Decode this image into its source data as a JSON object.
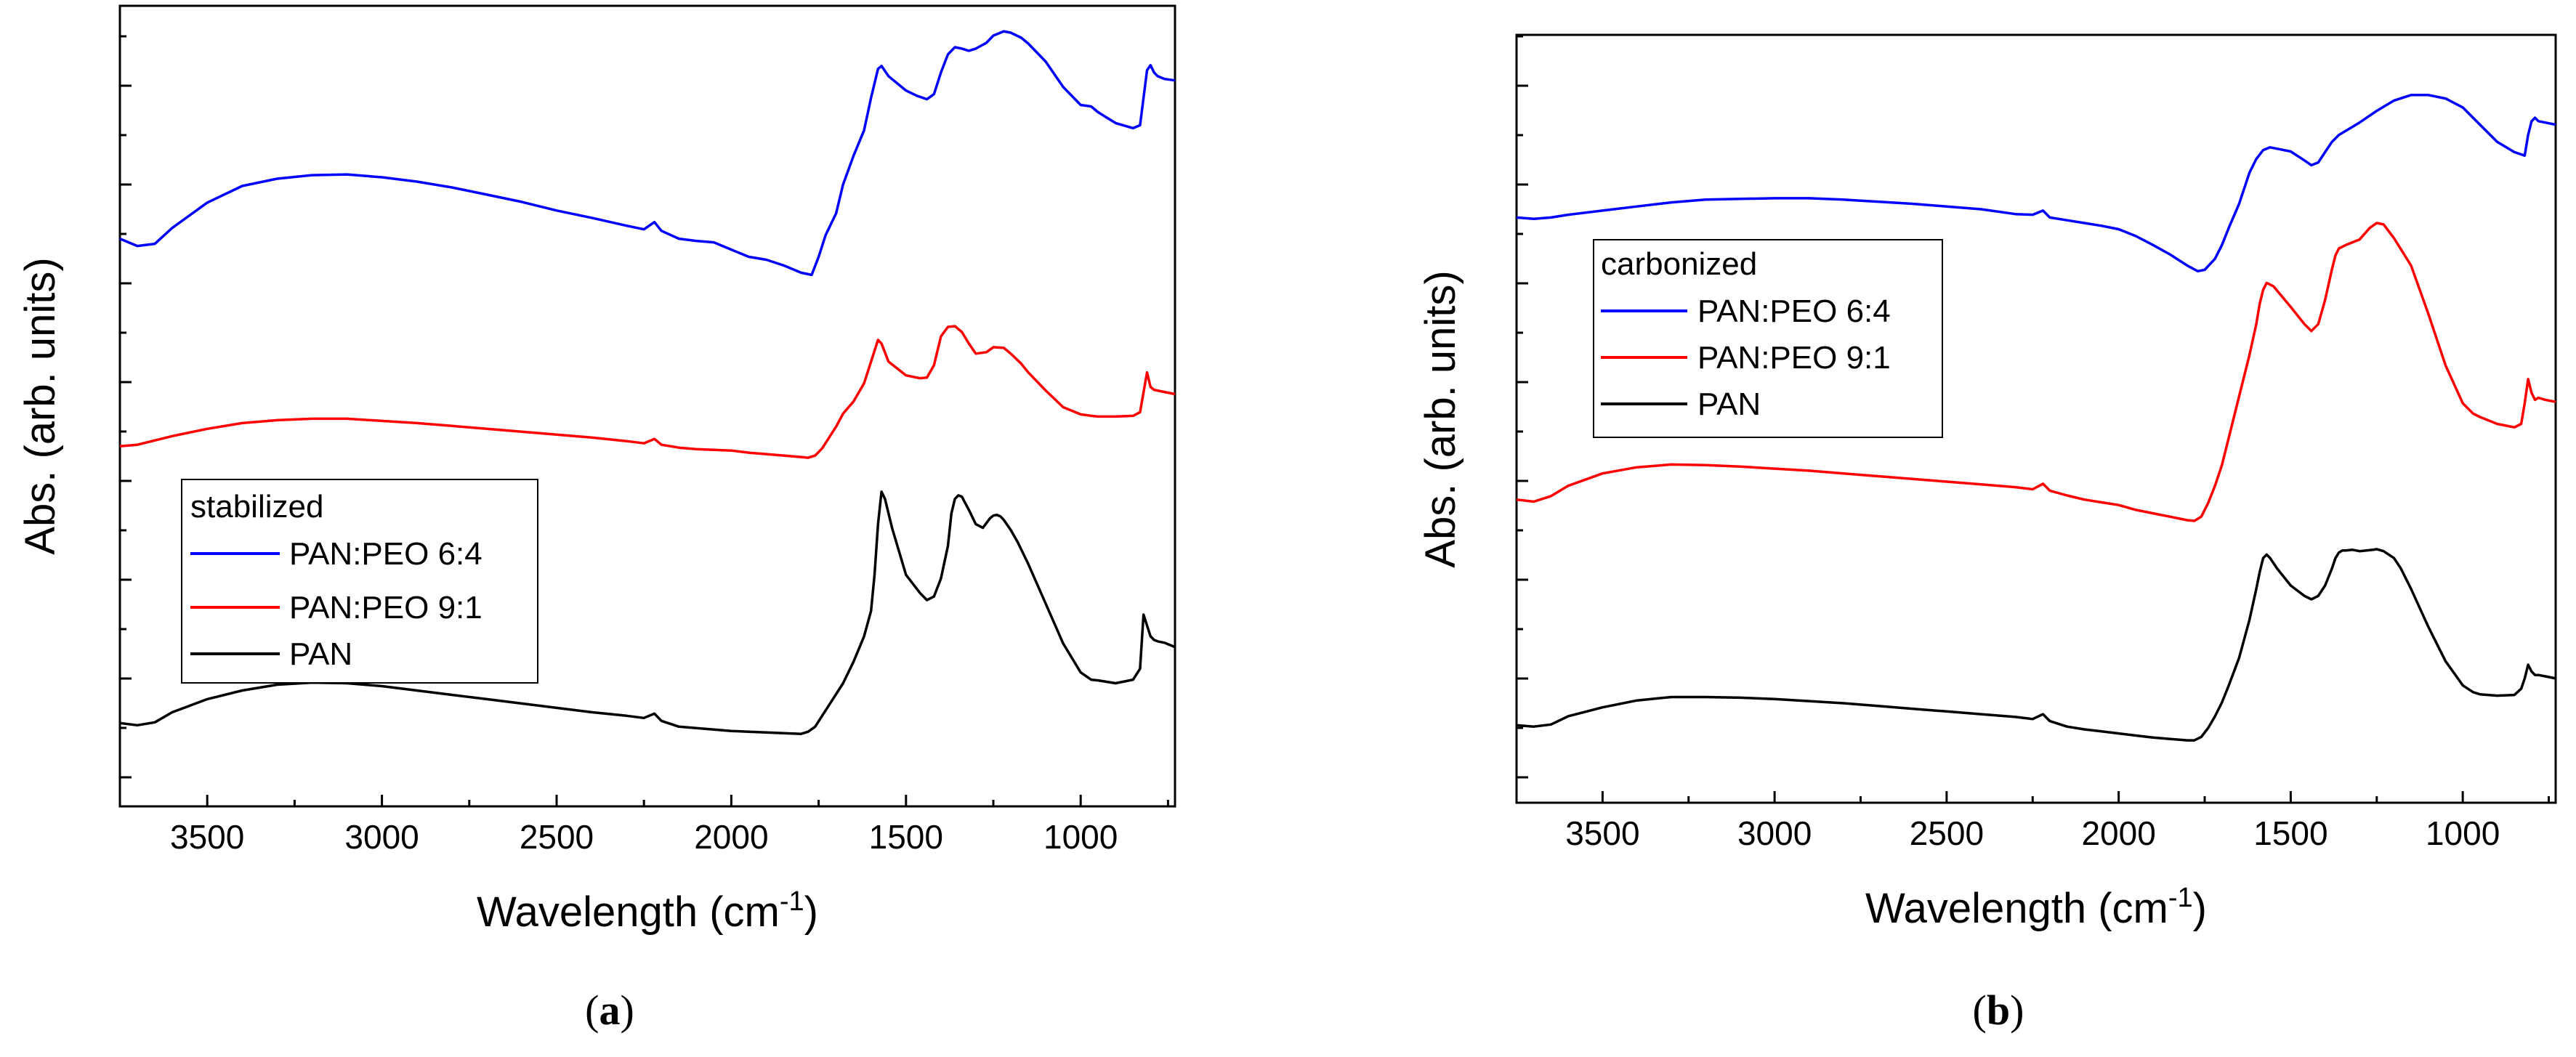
{
  "chart_data": [
    {
      "id": "a",
      "type": "line",
      "panel_label": "a",
      "xlabel": "Wavelength (cm",
      "xlabel_sup": "-1",
      "xlabel_suffix": ")",
      "ylabel": "Abs. (arb. units)",
      "x_reversed": true,
      "xlim": [
        3750,
        730
      ],
      "ylim": [
        0,
        100
      ],
      "xticks": [
        3500,
        3000,
        2500,
        2000,
        1500,
        1000
      ],
      "xtick_labels": [
        "3500",
        "3000",
        "2500",
        "2000",
        "1500",
        "1000"
      ],
      "y_tick_labels_shown": false,
      "legend": {
        "title": "stabilized",
        "position": "center-left",
        "entries": [
          "PAN:PEO 6:4",
          "PAN:PEO 9:1",
          "PAN"
        ]
      },
      "series": [
        {
          "name": "PAN:PEO 6:4",
          "color": "#0000ff",
          "x": [
            3750,
            3700,
            3650,
            3600,
            3500,
            3400,
            3300,
            3200,
            3100,
            3000,
            2900,
            2800,
            2700,
            2600,
            2500,
            2400,
            2300,
            2250,
            2220,
            2200,
            2150,
            2100,
            2050,
            2000,
            1950,
            1900,
            1850,
            1800,
            1770,
            1750,
            1730,
            1700,
            1680,
            1650,
            1620,
            1600,
            1580,
            1570,
            1550,
            1500,
            1470,
            1440,
            1420,
            1400,
            1380,
            1360,
            1340,
            1320,
            1300,
            1270,
            1250,
            1220,
            1200,
            1170,
            1150,
            1100,
            1050,
            1000,
            970,
            950,
            900,
            850,
            830,
            820,
            810,
            800,
            790,
            780,
            760,
            730
          ],
          "y": [
            72.5,
            71.5,
            71.8,
            74.0,
            77.5,
            79.8,
            80.8,
            81.3,
            81.4,
            81.0,
            80.4,
            79.6,
            78.6,
            77.6,
            76.4,
            75.4,
            74.3,
            73.8,
            74.8,
            73.6,
            72.5,
            72.2,
            72.0,
            71.0,
            70.0,
            69.6,
            68.8,
            67.8,
            67.5,
            70.0,
            73.0,
            76.0,
            80.0,
            84.0,
            87.5,
            92.0,
            96.0,
            96.4,
            95.0,
            93.0,
            92.3,
            91.8,
            92.5,
            95.5,
            98.0,
            99.0,
            98.8,
            98.5,
            98.8,
            99.6,
            100.6,
            101.2,
            101.0,
            100.3,
            99.5,
            97.0,
            93.5,
            91.0,
            90.8,
            90.0,
            88.5,
            87.8,
            88.2,
            92.0,
            95.8,
            96.5,
            95.5,
            95.0,
            94.6,
            94.4
          ]
        },
        {
          "name": "PAN:PEO 9:1",
          "color": "#ff0000",
          "x": [
            3750,
            3700,
            3600,
            3500,
            3400,
            3300,
            3200,
            3100,
            3000,
            2900,
            2800,
            2700,
            2600,
            2500,
            2400,
            2300,
            2250,
            2220,
            2200,
            2150,
            2100,
            2050,
            2000,
            1950,
            1900,
            1850,
            1800,
            1780,
            1760,
            1740,
            1720,
            1700,
            1680,
            1650,
            1620,
            1600,
            1580,
            1570,
            1550,
            1500,
            1460,
            1440,
            1420,
            1400,
            1380,
            1360,
            1340,
            1320,
            1300,
            1270,
            1250,
            1220,
            1200,
            1170,
            1150,
            1100,
            1050,
            1000,
            970,
            950,
            900,
            850,
            830,
            810,
            800,
            790,
            780,
            760,
            730
          ],
          "y": [
            43.8,
            44.0,
            45.2,
            46.2,
            47.0,
            47.4,
            47.6,
            47.6,
            47.3,
            47.0,
            46.6,
            46.2,
            45.8,
            45.4,
            45.0,
            44.5,
            44.2,
            44.8,
            44.0,
            43.6,
            43.4,
            43.3,
            43.2,
            42.9,
            42.7,
            42.5,
            42.3,
            42.2,
            42.5,
            43.5,
            45.0,
            46.5,
            48.3,
            50.0,
            52.5,
            55.5,
            58.5,
            58.0,
            55.5,
            53.6,
            53.2,
            53.3,
            55.0,
            59.0,
            60.3,
            60.4,
            59.6,
            58.0,
            56.6,
            56.8,
            57.5,
            57.4,
            56.6,
            55.2,
            54.0,
            51.5,
            49.2,
            48.2,
            48.0,
            47.9,
            47.9,
            48.0,
            48.5,
            54.0,
            52.0,
            51.6,
            51.5,
            51.3,
            51.0
          ]
        },
        {
          "name": "PAN",
          "color": "#000000",
          "x": [
            3750,
            3700,
            3650,
            3600,
            3500,
            3400,
            3300,
            3200,
            3100,
            3000,
            2900,
            2800,
            2700,
            2600,
            2500,
            2400,
            2300,
            2250,
            2220,
            2200,
            2150,
            2100,
            2050,
            2000,
            1950,
            1900,
            1850,
            1800,
            1780,
            1760,
            1740,
            1720,
            1700,
            1680,
            1650,
            1620,
            1600,
            1590,
            1580,
            1570,
            1560,
            1540,
            1500,
            1460,
            1440,
            1420,
            1400,
            1380,
            1370,
            1360,
            1350,
            1340,
            1320,
            1300,
            1280,
            1260,
            1250,
            1240,
            1230,
            1220,
            1200,
            1180,
            1150,
            1100,
            1050,
            1000,
            970,
            950,
            900,
            850,
            830,
            820,
            810,
            800,
            790,
            780,
            760,
            730
          ],
          "y": [
            5.5,
            5.2,
            5.6,
            7.0,
            8.8,
            10.0,
            10.8,
            11.1,
            11.0,
            10.6,
            10.0,
            9.4,
            8.8,
            8.2,
            7.6,
            7.0,
            6.5,
            6.2,
            6.8,
            5.8,
            5.0,
            4.8,
            4.6,
            4.4,
            4.3,
            4.2,
            4.1,
            4.0,
            4.3,
            5.0,
            6.5,
            8.0,
            9.5,
            11.0,
            14.0,
            17.5,
            21.0,
            26.0,
            33.0,
            37.5,
            36.5,
            32.5,
            26.0,
            23.5,
            22.5,
            23.0,
            25.5,
            30.0,
            34.5,
            36.5,
            37.0,
            36.8,
            35.0,
            33.0,
            32.5,
            33.8,
            34.2,
            34.3,
            34.1,
            33.6,
            32.2,
            30.5,
            27.5,
            22.0,
            16.5,
            12.5,
            11.5,
            11.4,
            11.0,
            11.5,
            13.0,
            20.5,
            19.0,
            17.5,
            17.0,
            16.8,
            16.6,
            16.0
          ]
        }
      ]
    },
    {
      "id": "b",
      "type": "line",
      "panel_label": "b",
      "xlabel": "Wavelength (cm",
      "xlabel_sup": "-1",
      "xlabel_suffix": ")",
      "ylabel": "Abs. (arb. units)",
      "x_reversed": true,
      "xlim": [
        3750,
        730
      ],
      "ylim": [
        0,
        100
      ],
      "xticks": [
        3500,
        3000,
        2500,
        2000,
        1500,
        1000
      ],
      "xtick_labels": [
        "3500",
        "3000",
        "2500",
        "2000",
        "1500",
        "1000"
      ],
      "y_tick_labels_shown": false,
      "legend": {
        "title": "carbonized",
        "position": "center-left",
        "entries": [
          "PAN:PEO 6:4",
          "PAN:PEO 9:1",
          "PAN"
        ]
      },
      "series": [
        {
          "name": "PAN:PEO 6:4",
          "color": "#0000ff",
          "x": [
            3750,
            3700,
            3650,
            3600,
            3500,
            3400,
            3300,
            3200,
            3100,
            3000,
            2900,
            2800,
            2700,
            2600,
            2500,
            2400,
            2300,
            2250,
            2220,
            2200,
            2150,
            2100,
            2050,
            2000,
            1950,
            1900,
            1850,
            1800,
            1770,
            1750,
            1720,
            1700,
            1680,
            1650,
            1620,
            1600,
            1580,
            1560,
            1540,
            1500,
            1460,
            1440,
            1420,
            1400,
            1380,
            1360,
            1340,
            1300,
            1250,
            1200,
            1150,
            1100,
            1050,
            1000,
            950,
            900,
            850,
            820,
            810,
            800,
            790,
            780,
            760,
            730
          ],
          "y": [
            80.0,
            79.8,
            80.0,
            80.4,
            81.0,
            81.6,
            82.2,
            82.6,
            82.7,
            82.8,
            82.8,
            82.6,
            82.3,
            82.0,
            81.6,
            81.2,
            80.5,
            80.4,
            81.0,
            80.0,
            79.6,
            79.2,
            78.8,
            78.3,
            77.3,
            76.0,
            74.6,
            73.0,
            72.2,
            72.4,
            74.0,
            76.0,
            78.5,
            82.0,
            86.5,
            88.5,
            89.8,
            90.2,
            90.0,
            89.6,
            88.3,
            87.6,
            88.0,
            89.5,
            91.0,
            92.0,
            92.6,
            93.8,
            95.5,
            97.0,
            97.8,
            97.8,
            97.3,
            96.0,
            93.5,
            91.0,
            89.5,
            89.0,
            92.0,
            94.0,
            94.5,
            94.0,
            93.8,
            93.5
          ]
        },
        {
          "name": "PAN:PEO 9:1",
          "color": "#ff0000",
          "x": [
            3750,
            3700,
            3650,
            3600,
            3500,
            3400,
            3300,
            3200,
            3100,
            3000,
            2900,
            2800,
            2700,
            2600,
            2500,
            2400,
            2300,
            2250,
            2220,
            2200,
            2150,
            2100,
            2050,
            2000,
            1950,
            1900,
            1850,
            1800,
            1780,
            1760,
            1740,
            1720,
            1700,
            1680,
            1650,
            1620,
            1600,
            1590,
            1580,
            1570,
            1550,
            1500,
            1460,
            1440,
            1420,
            1400,
            1380,
            1370,
            1360,
            1340,
            1300,
            1270,
            1250,
            1230,
            1200,
            1150,
            1100,
            1050,
            1000,
            970,
            950,
            900,
            850,
            830,
            820,
            810,
            800,
            790,
            780,
            760,
            730
          ],
          "y": [
            39.0,
            38.7,
            39.5,
            41.0,
            42.8,
            43.7,
            44.1,
            44.0,
            43.8,
            43.5,
            43.2,
            42.8,
            42.4,
            42.0,
            41.6,
            41.2,
            40.8,
            40.5,
            41.3,
            40.3,
            39.6,
            39.0,
            38.6,
            38.2,
            37.5,
            37.0,
            36.5,
            36.0,
            35.9,
            36.5,
            38.5,
            41.0,
            44.0,
            48.0,
            54.0,
            60.0,
            64.5,
            67.5,
            69.5,
            70.5,
            70.0,
            67.0,
            64.5,
            63.5,
            64.5,
            68.0,
            72.5,
            74.5,
            75.5,
            76.0,
            76.8,
            78.5,
            79.2,
            79.0,
            77.0,
            73.0,
            66.0,
            58.5,
            53.0,
            51.5,
            51.0,
            50.0,
            49.5,
            50.0,
            53.0,
            56.5,
            54.5,
            53.5,
            53.8,
            53.5,
            53.2
          ]
        },
        {
          "name": "PAN",
          "color": "#000000",
          "x": [
            3750,
            3700,
            3650,
            3600,
            3500,
            3400,
            3300,
            3200,
            3100,
            3000,
            2900,
            2800,
            2700,
            2600,
            2500,
            2400,
            2300,
            2250,
            2220,
            2200,
            2150,
            2100,
            2050,
            2000,
            1950,
            1900,
            1850,
            1800,
            1780,
            1760,
            1740,
            1720,
            1700,
            1680,
            1650,
            1620,
            1600,
            1590,
            1580,
            1570,
            1560,
            1540,
            1500,
            1460,
            1440,
            1420,
            1400,
            1380,
            1370,
            1360,
            1350,
            1340,
            1320,
            1300,
            1280,
            1260,
            1250,
            1230,
            1200,
            1180,
            1150,
            1100,
            1050,
            1000,
            970,
            950,
            900,
            850,
            830,
            820,
            810,
            800,
            790,
            780,
            760,
            730
          ],
          "y": [
            6.2,
            6.0,
            6.3,
            7.5,
            8.8,
            9.8,
            10.3,
            10.3,
            10.2,
            10.0,
            9.7,
            9.4,
            9.0,
            8.6,
            8.2,
            7.8,
            7.4,
            7.1,
            7.8,
            6.8,
            6.0,
            5.6,
            5.3,
            5.0,
            4.7,
            4.4,
            4.2,
            4.0,
            4.0,
            4.5,
            5.8,
            7.5,
            9.5,
            12.0,
            16.0,
            21.5,
            26.0,
            28.5,
            30.5,
            31.0,
            30.5,
            29.0,
            26.5,
            25.0,
            24.5,
            25.0,
            26.5,
            29.0,
            30.5,
            31.3,
            31.6,
            31.6,
            31.7,
            31.5,
            31.6,
            31.7,
            31.8,
            31.5,
            30.5,
            29.0,
            26.0,
            20.5,
            15.5,
            12.0,
            11.0,
            10.7,
            10.5,
            10.6,
            11.5,
            13.0,
            15.0,
            14.0,
            13.5,
            13.5,
            13.3,
            13.0
          ]
        }
      ]
    }
  ]
}
